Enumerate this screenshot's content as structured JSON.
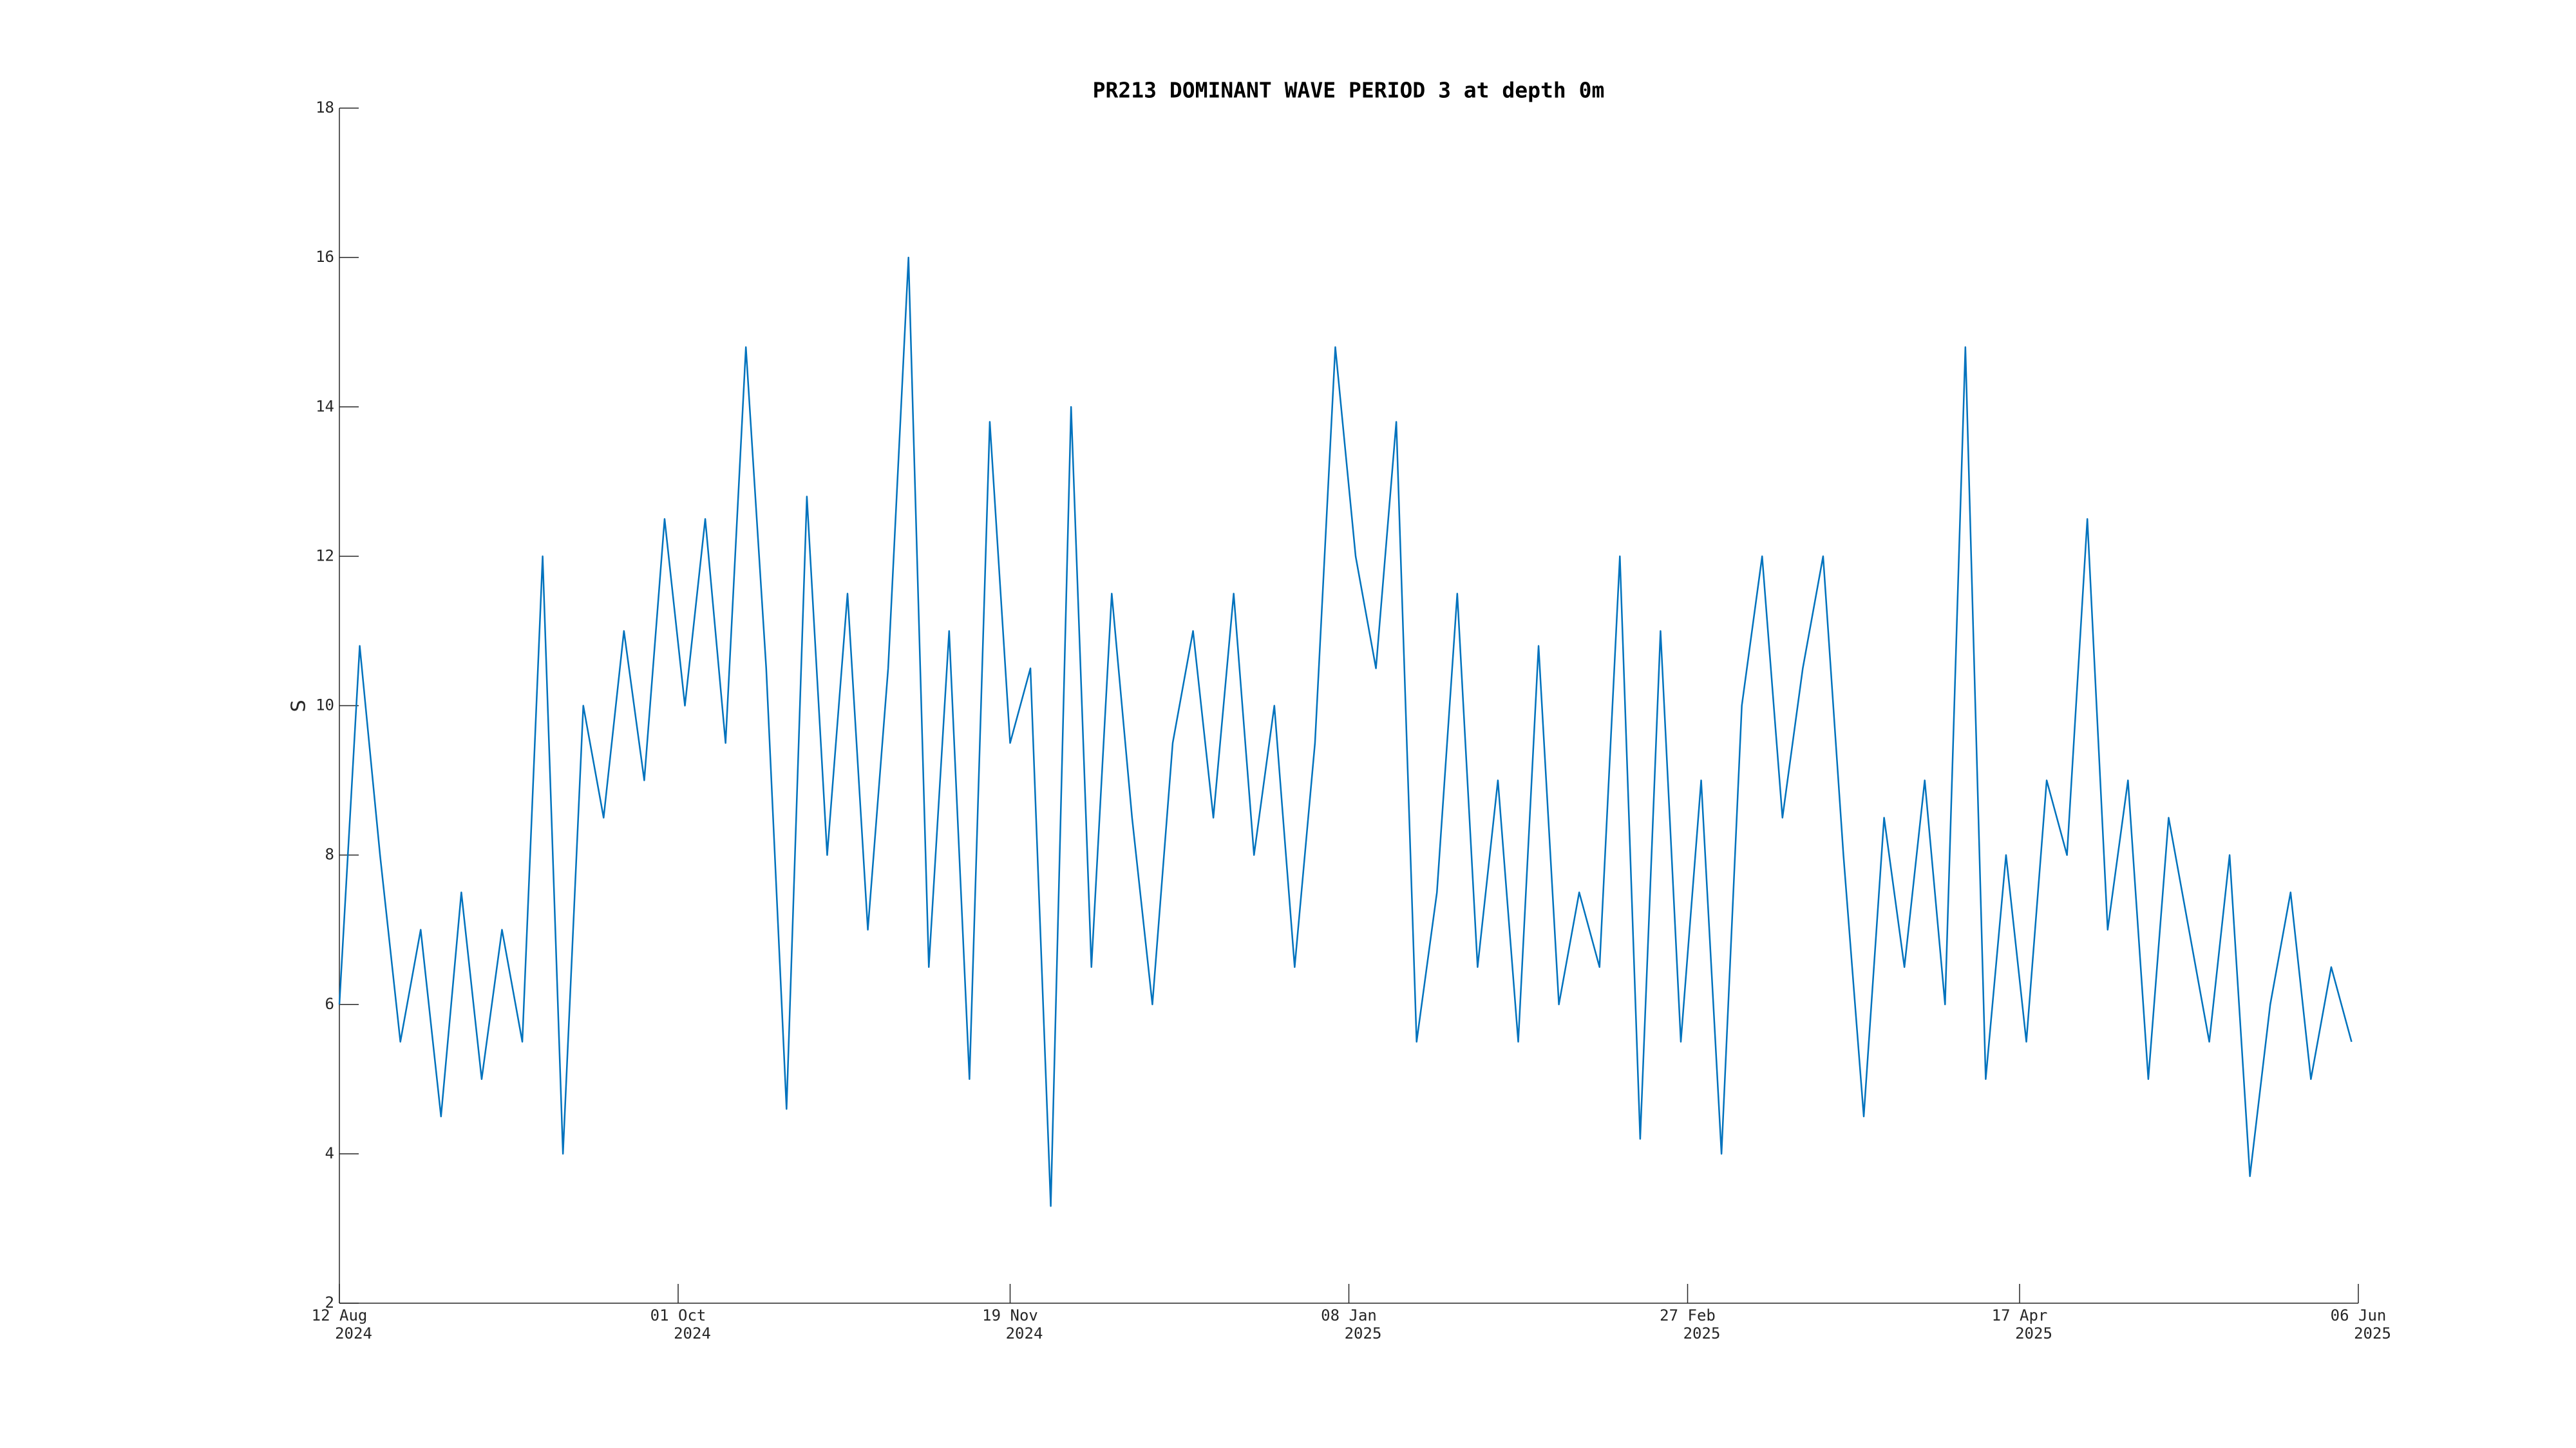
{
  "chart_data": {
    "type": "line",
    "title": "PR213 DOMINANT WAVE PERIOD 3 at depth 0m",
    "ylabel": "S",
    "color": "#0072bd",
    "x": [
      "2024-08-12",
      "2024-08-15",
      "2024-08-18",
      "2024-08-21",
      "2024-08-24",
      "2024-08-27",
      "2024-08-30",
      "2024-09-02",
      "2024-09-05",
      "2024-09-08",
      "2024-09-11",
      "2024-09-14",
      "2024-09-17",
      "2024-09-20",
      "2024-09-23",
      "2024-09-26",
      "2024-09-29",
      "2024-10-02",
      "2024-10-05",
      "2024-10-08",
      "2024-10-11",
      "2024-10-14",
      "2024-10-17",
      "2024-10-20",
      "2024-10-23",
      "2024-10-26",
      "2024-10-29",
      "2024-11-01",
      "2024-11-04",
      "2024-11-07",
      "2024-11-10",
      "2024-11-13",
      "2024-11-16",
      "2024-11-19",
      "2024-11-22",
      "2024-11-25",
      "2024-11-28",
      "2024-12-01",
      "2024-12-04",
      "2024-12-07",
      "2024-12-10",
      "2024-12-13",
      "2024-12-16",
      "2024-12-19",
      "2024-12-22",
      "2024-12-25",
      "2024-12-28",
      "2024-12-31",
      "2025-01-03",
      "2025-01-06",
      "2025-01-09",
      "2025-01-12",
      "2025-01-15",
      "2025-01-18",
      "2025-01-21",
      "2025-01-24",
      "2025-01-27",
      "2025-01-30",
      "2025-02-02",
      "2025-02-05",
      "2025-02-08",
      "2025-02-11",
      "2025-02-14",
      "2025-02-17",
      "2025-02-20",
      "2025-02-23",
      "2025-02-26",
      "2025-03-01",
      "2025-03-04",
      "2025-03-07",
      "2025-03-10",
      "2025-03-13",
      "2025-03-16",
      "2025-03-19",
      "2025-03-22",
      "2025-03-25",
      "2025-03-28",
      "2025-03-31",
      "2025-04-03",
      "2025-04-06",
      "2025-04-09",
      "2025-04-12",
      "2025-04-15",
      "2025-04-18",
      "2025-04-21",
      "2025-04-24",
      "2025-04-27",
      "2025-04-30",
      "2025-05-03",
      "2025-05-06",
      "2025-05-09",
      "2025-05-12",
      "2025-05-15",
      "2025-05-18",
      "2025-05-21",
      "2025-05-24",
      "2025-05-27",
      "2025-05-30",
      "2025-06-02",
      "2025-06-05"
    ],
    "values": [
      6,
      10.8,
      8,
      5.5,
      7,
      4.5,
      7.5,
      5,
      7,
      5.5,
      12,
      4,
      10,
      8.5,
      11,
      9,
      12.5,
      10,
      12.5,
      9.5,
      14.8,
      10.5,
      4.6,
      12.8,
      8,
      11.5,
      7,
      10.5,
      16,
      6.5,
      11,
      5,
      13.8,
      9.5,
      10.5,
      3.3,
      14,
      6.5,
      11.5,
      8.5,
      6,
      9.5,
      11,
      8.5,
      11.5,
      8,
      10,
      6.5,
      9.5,
      14.8,
      12,
      10.5,
      13.8,
      5.5,
      7.5,
      11.5,
      6.5,
      9,
      5.5,
      10.8,
      6,
      7.5,
      6.5,
      12,
      4.2,
      11,
      5.5,
      9,
      4,
      10,
      12,
      8.5,
      10.5,
      12,
      8,
      4.5,
      8.5,
      6.5,
      9,
      6,
      14.8,
      5,
      8,
      5.5,
      9,
      8,
      12.5,
      7,
      9,
      5,
      8.5,
      7,
      5.5,
      8,
      3.7,
      6,
      7.5,
      5,
      6.5,
      5.5
    ],
    "xlim": [
      "2024-08-12",
      "2025-06-06"
    ],
    "xticks": [
      {
        "value": "2024-08-12",
        "label": [
          "12 Aug",
          "2024"
        ]
      },
      {
        "value": "2024-10-01",
        "label": [
          "01 Oct",
          "2024"
        ]
      },
      {
        "value": "2024-11-19",
        "label": [
          "19 Nov",
          "2024"
        ]
      },
      {
        "value": "2025-01-08",
        "label": [
          "08 Jan",
          "2025"
        ]
      },
      {
        "value": "2025-02-27",
        "label": [
          "27 Feb",
          "2025"
        ]
      },
      {
        "value": "2025-04-17",
        "label": [
          "17 Apr",
          "2025"
        ]
      },
      {
        "value": "2025-06-06",
        "label": [
          "06 Jun",
          "2025"
        ]
      }
    ],
    "ylim": [
      2,
      18
    ],
    "yticks": [
      2,
      4,
      6,
      8,
      10,
      12,
      14,
      16,
      18
    ],
    "grid": false
  }
}
